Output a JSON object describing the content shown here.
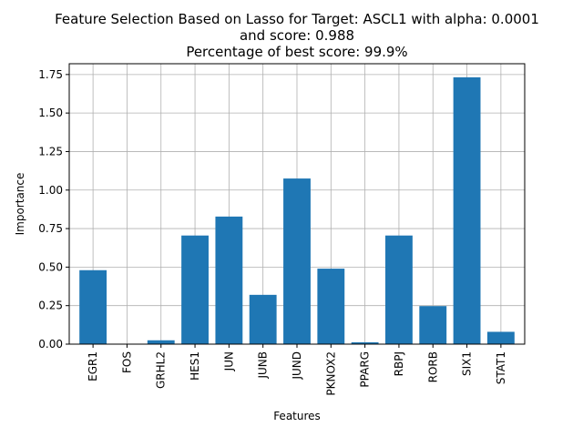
{
  "chart_data": {
    "type": "bar",
    "title_lines": [
      "Feature Selection Based on Lasso for Target: ASCL1 with alpha: 0.0001",
      "and score: 0.988",
      "Percentage of best score: 99.9%"
    ],
    "xlabel": "Features",
    "ylabel": "Importance",
    "categories": [
      "EGR1",
      "FOS",
      "GRHL2",
      "HES1",
      "JUN",
      "JUNB",
      "JUND",
      "PKNOX2",
      "PPARG",
      "RBPJ",
      "RORB",
      "SIX1",
      "STAT1"
    ],
    "values": [
      0.48,
      0.0,
      0.025,
      0.705,
      0.828,
      0.32,
      1.075,
      0.49,
      0.012,
      0.705,
      0.247,
      1.732,
      0.08
    ],
    "ylim": [
      0,
      1.82
    ],
    "yticks": [
      "0.00",
      "0.25",
      "0.50",
      "0.75",
      "1.00",
      "1.25",
      "1.50",
      "1.75"
    ],
    "grid": true,
    "bar_color": "#1f77b4"
  }
}
